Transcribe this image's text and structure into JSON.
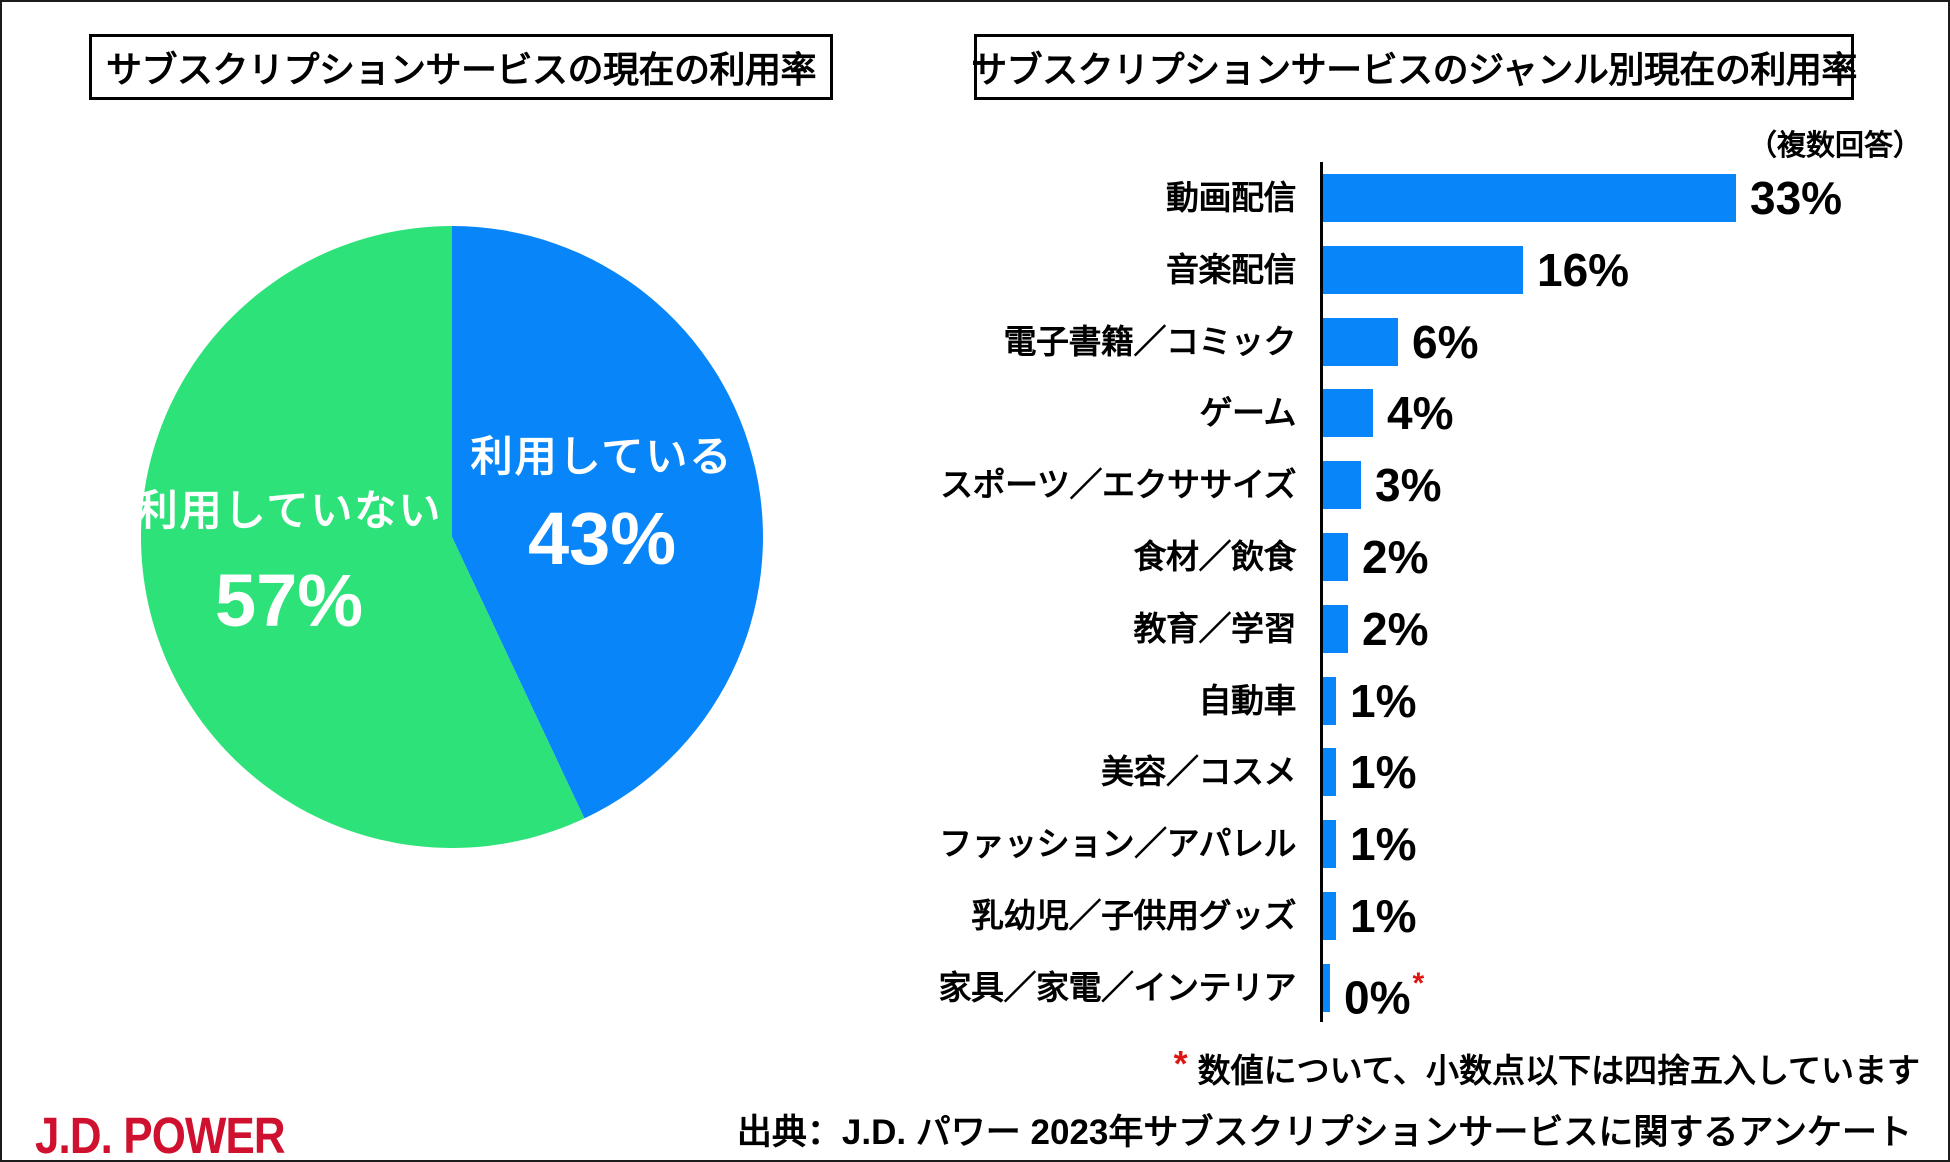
{
  "page": {
    "background": "#ffffff",
    "border_color": "#1c1c1c"
  },
  "chart_data": [
    {
      "type": "pie",
      "title": "サブスクリプションサービスの現在の利用率",
      "start_angle_deg": 0,
      "direction": "clockwise",
      "value_suffix": "%",
      "slices": [
        {
          "label": "利用している",
          "value": 43,
          "color": "#0885F8",
          "text_color": "#ffffff"
        },
        {
          "label": "利用していない",
          "value": 57,
          "color": "#2EE27A",
          "text_color": "#ffffff"
        }
      ]
    },
    {
      "type": "bar",
      "orientation": "horizontal",
      "title": "サブスクリプションサービスのジャンル別現在の利用率",
      "subtitle": "（複数回答）",
      "bar_color": "#0885F8",
      "value_suffix": "%",
      "xlim": [
        0,
        35
      ],
      "grid": false,
      "categories": [
        "動画配信",
        "音楽配信",
        "電子書籍／コミック",
        "ゲーム",
        "スポーツ／エクササイズ",
        "食材／飲食",
        "教育／学習",
        "自動車",
        "美容／コスメ",
        "ファッション／アパレル",
        "乳幼児／子供用グッズ",
        "家具／家電／インテリア"
      ],
      "values": [
        33,
        16,
        6,
        4,
        3,
        2,
        2,
        1,
        1,
        1,
        1,
        0
      ],
      "asterisk_on_index": 11,
      "asterisk": "*",
      "asterisk_color": "#DE1510"
    }
  ],
  "footnote": {
    "marker": "*",
    "marker_color": "#DE1510",
    "text": "数値について、小数点以下は四捨五入しています"
  },
  "source": {
    "text": "出典：J.D. パワー 2023年サブスクリプションサービスに関するアンケート"
  },
  "logo": {
    "text": "J.D. POWER",
    "color": "#CF102E"
  }
}
